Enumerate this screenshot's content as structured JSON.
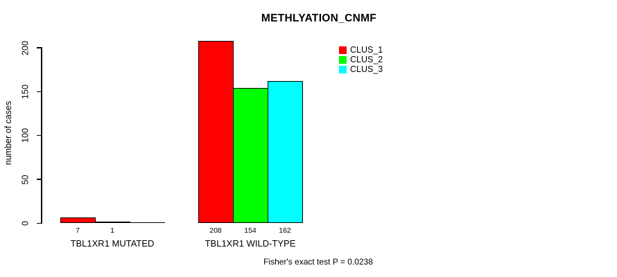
{
  "chart_data": {
    "type": "bar",
    "title": "METHLYATION_CNMF",
    "ylabel": "number of cases",
    "xlabel": "",
    "categories": [
      "TBL1XR1 MUTATED",
      "TBL1XR1 WILD-TYPE"
    ],
    "series": [
      {
        "name": "CLUS_1",
        "color": "#ff0000",
        "values": [
          7,
          208
        ]
      },
      {
        "name": "CLUS_2",
        "color": "#00ff00",
        "values": [
          1,
          154
        ]
      },
      {
        "name": "CLUS_3",
        "color": "#00ffff",
        "values": [
          0,
          162
        ]
      }
    ],
    "y_ticks": [
      0,
      50,
      100,
      150,
      200
    ],
    "ylim": [
      0,
      200
    ],
    "grid": false,
    "legend_position": "top-right",
    "bar_value_labels_shown": true,
    "annotation": "Fisher's exact test P = 0.0238"
  },
  "colors": {
    "background": "#ffffff",
    "axis": "#000000",
    "text": "#000000"
  }
}
